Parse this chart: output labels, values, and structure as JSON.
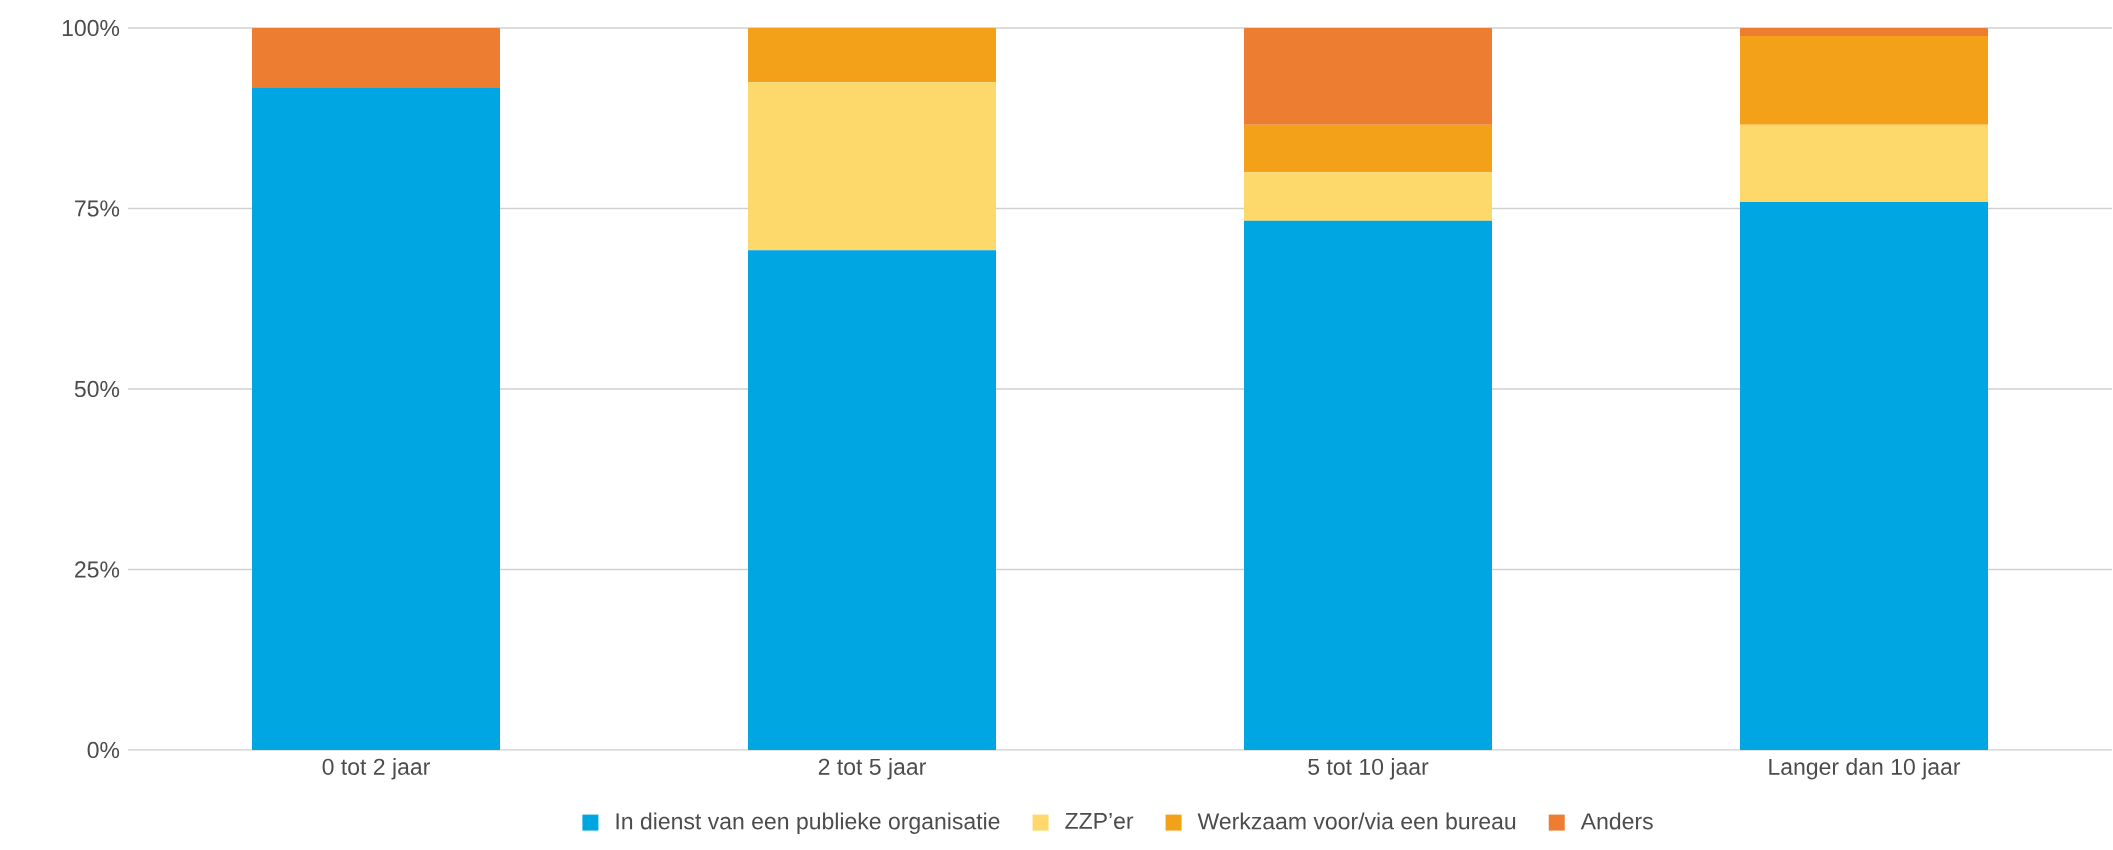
{
  "chart_data": {
    "type": "bar",
    "stacked": true,
    "categories": [
      "0 tot 2 jaar",
      "2 tot 5 jaar",
      "5 tot 10 jaar",
      "Langer dan 10 jaar"
    ],
    "series": [
      {
        "name": "In dienst van een publieke organisatie",
        "color": "#00a6e2",
        "values": [
          91.8,
          69.2,
          73.3,
          75.9
        ]
      },
      {
        "name": "ZZP’er",
        "color": "#fdd96b",
        "values": [
          0,
          23.3,
          6.7,
          10.7
        ]
      },
      {
        "name": "Werkzaam voor/via een bureau",
        "color": "#f4a11a",
        "values": [
          0,
          7.5,
          6.6,
          12.3
        ]
      },
      {
        "name": "Anders",
        "color": "#ed7d31",
        "values": [
          8.2,
          0,
          13.4,
          1.1
        ]
      }
    ],
    "ylim": [
      0,
      100
    ],
    "yticks": [
      {
        "value": 0,
        "label": "0%"
      },
      {
        "value": 25,
        "label": "25%"
      },
      {
        "value": 50,
        "label": "50%"
      },
      {
        "value": 75,
        "label": "75%"
      },
      {
        "value": 100,
        "label": "100%"
      }
    ],
    "grid": "y",
    "legend": "bottom"
  }
}
